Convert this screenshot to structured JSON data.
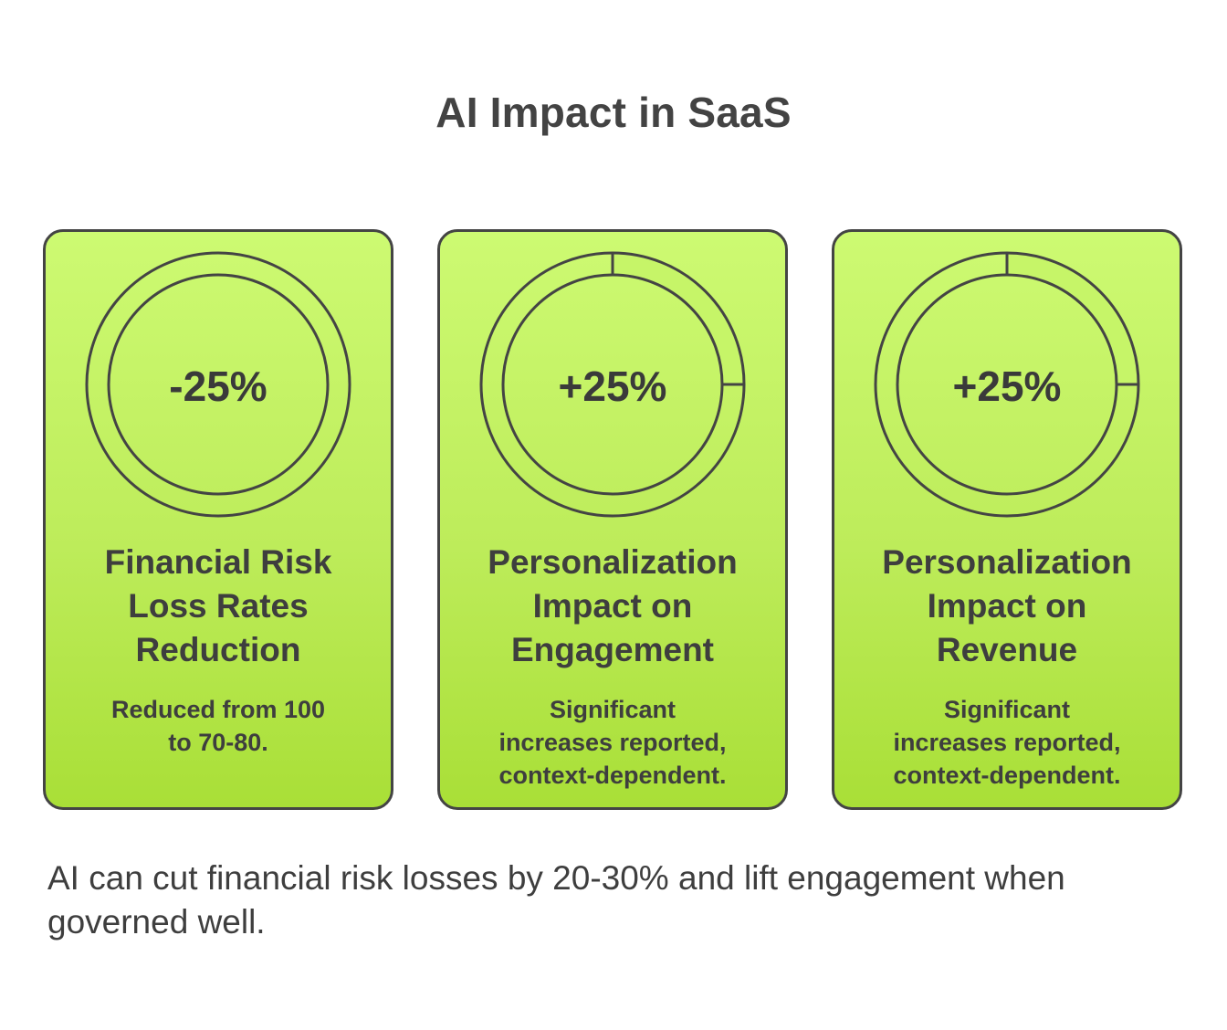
{
  "title": "AI Impact in SaaS",
  "colors": {
    "card_top": "#cdfa72",
    "card_bottom": "#a9df37",
    "progress_fill": "#c6f568",
    "outline": "#444444"
  },
  "cards": [
    {
      "value_label": "-25%",
      "ring_fill_fraction": 0,
      "heading": [
        "Financial Risk",
        "Loss Rates",
        "Reduction"
      ],
      "description": [
        "Reduced from 100",
        "to 70-80."
      ]
    },
    {
      "value_label": "+25%",
      "ring_fill_fraction": 0.25,
      "heading": [
        "Personalization",
        "Impact on",
        "Engagement"
      ],
      "description": [
        "Significant",
        "increases reported,",
        "context-dependent."
      ]
    },
    {
      "value_label": "+25%",
      "ring_fill_fraction": 0.25,
      "heading": [
        "Personalization",
        "Impact on",
        "Revenue"
      ],
      "description": [
        "Significant",
        "increases reported,",
        "context-dependent."
      ]
    }
  ],
  "footer": "AI can cut financial risk losses by 20-30% and lift engagement when governed well."
}
